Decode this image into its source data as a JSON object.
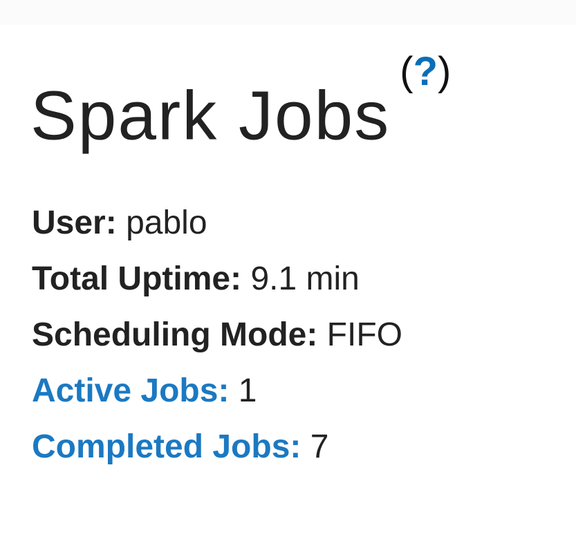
{
  "page": {
    "title": "Spark Jobs",
    "help_link": "?"
  },
  "summary": [
    {
      "label": "User:",
      "value": "pablo",
      "link": false
    },
    {
      "label": "Total Uptime:",
      "value": "9.1 min",
      "link": false
    },
    {
      "label": "Scheduling Mode:",
      "value": "FIFO",
      "link": false
    },
    {
      "label": "Active Jobs:",
      "value": "1",
      "link": true
    },
    {
      "label": "Completed Jobs:",
      "value": "7",
      "link": true
    }
  ],
  "colors": {
    "link": "#1b79c2",
    "text": "#222222"
  }
}
